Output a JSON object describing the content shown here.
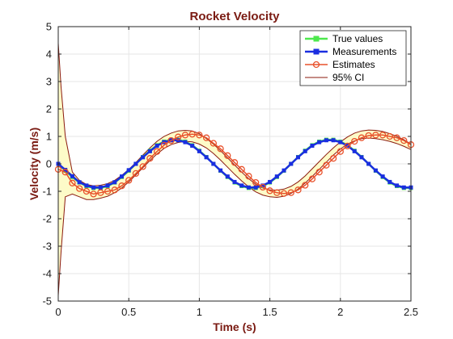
{
  "chart_data": {
    "type": "line",
    "title": "Rocket Velocity",
    "xlabel": "Time (s)",
    "ylabel": "Velocity (m/s)",
    "xlim": [
      0,
      2.5
    ],
    "ylim": [
      -5,
      5
    ],
    "xticks": [
      0,
      0.5,
      1,
      1.5,
      2,
      2.5
    ],
    "xtick_labels": [
      "0",
      "0.5",
      "1",
      "1.5",
      "2",
      "2.5"
    ],
    "yticks": [
      -5,
      -4,
      -3,
      -2,
      -1,
      0,
      1,
      2,
      3,
      4,
      5
    ],
    "ytick_labels": [
      "-5",
      "-4",
      "-3",
      "-2",
      "-1",
      "0",
      "1",
      "2",
      "3",
      "4",
      "5"
    ],
    "grid": true,
    "legend_location": "top-right",
    "colors": {
      "true_values": "#4de84d",
      "measurements": "#1a2ee0",
      "estimates": "#e8502a",
      "ci_line": "#8b1a0e",
      "ci_fill": "#fdfbc8",
      "title": "#7a1a12"
    },
    "series": [
      {
        "name": "True values",
        "x": [
          0.0,
          0.05,
          0.1,
          0.15,
          0.2,
          0.25,
          0.3,
          0.35,
          0.4,
          0.45,
          0.5,
          0.55,
          0.6,
          0.65,
          0.7,
          0.75,
          0.8,
          0.85,
          0.9,
          0.95,
          1.0,
          1.05,
          1.1,
          1.15,
          1.2,
          1.25,
          1.3,
          1.35,
          1.4,
          1.45,
          1.5,
          1.55,
          1.6,
          1.65,
          1.7,
          1.75,
          1.8,
          1.85,
          1.9,
          1.95,
          2.0,
          2.05,
          2.1,
          2.15,
          2.2,
          2.25,
          2.3,
          2.35,
          2.4,
          2.45,
          2.5
        ],
        "values": [
          0.0,
          -0.25,
          -0.48,
          -0.68,
          -0.81,
          -0.88,
          -0.88,
          -0.81,
          -0.68,
          -0.48,
          -0.25,
          0.0,
          0.25,
          0.48,
          0.68,
          0.81,
          0.88,
          0.88,
          0.81,
          0.68,
          0.48,
          0.25,
          0.0,
          -0.25,
          -0.48,
          -0.68,
          -0.81,
          -0.88,
          -0.88,
          -0.81,
          -0.68,
          -0.48,
          -0.25,
          0.0,
          0.25,
          0.48,
          0.68,
          0.81,
          0.88,
          0.88,
          0.81,
          0.68,
          0.48,
          0.25,
          0.0,
          -0.25,
          -0.48,
          -0.68,
          -0.81,
          -0.88,
          -0.88
        ]
      },
      {
        "name": "Measurements",
        "x": [
          0.0,
          0.05,
          0.1,
          0.15,
          0.2,
          0.25,
          0.3,
          0.35,
          0.4,
          0.45,
          0.5,
          0.55,
          0.6,
          0.65,
          0.7,
          0.75,
          0.8,
          0.85,
          0.9,
          0.95,
          1.0,
          1.05,
          1.1,
          1.15,
          1.2,
          1.25,
          1.3,
          1.35,
          1.4,
          1.45,
          1.5,
          1.55,
          1.6,
          1.65,
          1.7,
          1.75,
          1.8,
          1.85,
          1.9,
          1.95,
          2.0,
          2.05,
          2.1,
          2.15,
          2.2,
          2.25,
          2.3,
          2.35,
          2.4,
          2.45,
          2.5
        ],
        "values": [
          0.0,
          -0.22,
          -0.45,
          -0.67,
          -0.79,
          -0.86,
          -0.86,
          -0.79,
          -0.67,
          -0.46,
          -0.23,
          0.0,
          0.24,
          0.46,
          0.66,
          0.79,
          0.86,
          0.86,
          0.79,
          0.66,
          0.46,
          0.24,
          0.0,
          -0.24,
          -0.46,
          -0.66,
          -0.79,
          -0.86,
          -0.86,
          -0.79,
          -0.66,
          -0.46,
          -0.24,
          0.0,
          0.24,
          0.46,
          0.66,
          0.79,
          0.86,
          0.86,
          0.79,
          0.66,
          0.46,
          0.24,
          0.0,
          -0.24,
          -0.46,
          -0.66,
          -0.79,
          -0.86,
          -0.86
        ]
      },
      {
        "name": "Estimates",
        "x": [
          0.0,
          0.05,
          0.1,
          0.15,
          0.2,
          0.25,
          0.3,
          0.35,
          0.4,
          0.45,
          0.5,
          0.55,
          0.6,
          0.65,
          0.7,
          0.75,
          0.8,
          0.85,
          0.9,
          0.95,
          1.0,
          1.05,
          1.1,
          1.15,
          1.2,
          1.25,
          1.3,
          1.35,
          1.4,
          1.45,
          1.5,
          1.55,
          1.6,
          1.65,
          1.7,
          1.75,
          1.8,
          1.85,
          1.9,
          1.95,
          2.0,
          2.05,
          2.1,
          2.15,
          2.2,
          2.25,
          2.3,
          2.35,
          2.4,
          2.45,
          2.5
        ],
        "values": [
          -0.2,
          -0.3,
          -0.7,
          -0.9,
          -1.0,
          -1.1,
          -1.05,
          -1.0,
          -0.95,
          -0.8,
          -0.6,
          -0.35,
          -0.1,
          0.2,
          0.45,
          0.68,
          0.85,
          0.98,
          1.05,
          1.08,
          1.05,
          0.95,
          0.75,
          0.55,
          0.3,
          0.05,
          -0.2,
          -0.45,
          -0.68,
          -0.85,
          -0.98,
          -1.05,
          -1.08,
          -1.05,
          -0.95,
          -0.78,
          -0.55,
          -0.3,
          -0.05,
          0.2,
          0.45,
          0.65,
          0.82,
          0.95,
          1.03,
          1.05,
          1.05,
          1.0,
          0.95,
          0.85,
          0.7
        ]
      }
    ],
    "confidence_interval": {
      "name": "95% CI",
      "x": [
        0.0,
        0.02,
        0.05,
        0.1,
        0.15,
        0.2,
        0.25,
        0.3,
        0.35,
        0.4,
        0.45,
        0.5,
        0.55,
        0.6,
        0.65,
        0.7,
        0.75,
        0.8,
        0.85,
        0.9,
        0.95,
        1.0,
        1.05,
        1.1,
        1.15,
        1.2,
        1.25,
        1.3,
        1.35,
        1.4,
        1.45,
        1.5,
        1.55,
        1.6,
        1.65,
        1.7,
        1.75,
        1.8,
        1.85,
        1.9,
        1.95,
        2.0,
        2.05,
        2.1,
        2.15,
        2.2,
        2.25,
        2.3,
        2.35,
        2.4,
        2.45,
        2.5
      ],
      "upper": [
        4.4,
        2.8,
        1.0,
        -0.3,
        -0.6,
        -0.75,
        -0.8,
        -0.78,
        -0.72,
        -0.6,
        -0.42,
        -0.2,
        0.05,
        0.32,
        0.58,
        0.82,
        1.0,
        1.12,
        1.2,
        1.22,
        1.2,
        1.1,
        0.92,
        0.72,
        0.48,
        0.22,
        -0.04,
        -0.3,
        -0.54,
        -0.74,
        -0.88,
        -0.95,
        -0.96,
        -0.92,
        -0.82,
        -0.66,
        -0.44,
        -0.18,
        0.08,
        0.34,
        0.58,
        0.8,
        0.98,
        1.12,
        1.2,
        1.23,
        1.22,
        1.18,
        1.1,
        1.0,
        0.88,
        0.72
      ],
      "lower": [
        -4.8,
        -3.2,
        -1.2,
        -1.1,
        -1.2,
        -1.3,
        -1.3,
        -1.25,
        -1.18,
        -1.05,
        -0.88,
        -0.66,
        -0.4,
        -0.14,
        0.12,
        0.36,
        0.56,
        0.7,
        0.78,
        0.82,
        0.8,
        0.72,
        0.58,
        0.38,
        0.14,
        -0.12,
        -0.38,
        -0.62,
        -0.84,
        -1.02,
        -1.14,
        -1.2,
        -1.22,
        -1.18,
        -1.08,
        -0.92,
        -0.7,
        -0.46,
        -0.2,
        0.06,
        0.32,
        0.54,
        0.72,
        0.84,
        0.92,
        0.94,
        0.92,
        0.88,
        0.82,
        0.74,
        0.64,
        0.52
      ]
    }
  }
}
